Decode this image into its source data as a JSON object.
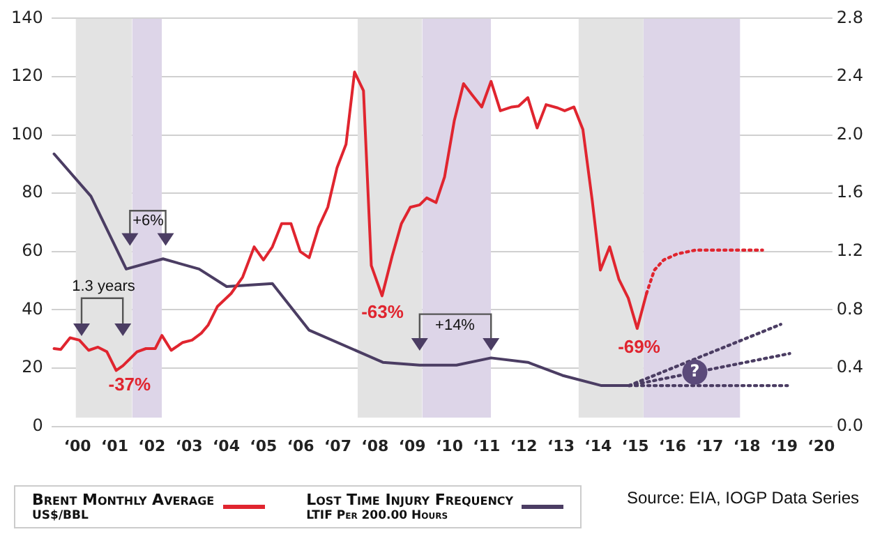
{
  "chart_data": {
    "type": "line",
    "xlim": [
      -0.7,
      20.3
    ],
    "xticks": [
      {
        "value": 0,
        "label": "‘00"
      },
      {
        "value": 1,
        "label": "‘01"
      },
      {
        "value": 2,
        "label": "‘02"
      },
      {
        "value": 3,
        "label": "‘03"
      },
      {
        "value": 4,
        "label": "‘04"
      },
      {
        "value": 5,
        "label": "‘05"
      },
      {
        "value": 6,
        "label": "‘06"
      },
      {
        "value": 7,
        "label": "‘07"
      },
      {
        "value": 8,
        "label": "‘08"
      },
      {
        "value": 9,
        "label": "‘09"
      },
      {
        "value": 10,
        "label": "‘10"
      },
      {
        "value": 11,
        "label": "‘11"
      },
      {
        "value": 12,
        "label": "‘12"
      },
      {
        "value": 13,
        "label": "‘13"
      },
      {
        "value": 14,
        "label": "‘14"
      },
      {
        "value": 15,
        "label": "‘15"
      },
      {
        "value": 16,
        "label": "‘16"
      },
      {
        "value": 17,
        "label": "‘17"
      },
      {
        "value": 18,
        "label": "‘18"
      },
      {
        "value": 19,
        "label": "‘19"
      },
      {
        "value": 20,
        "label": "‘20"
      }
    ],
    "ylim": [
      0,
      140
    ],
    "yticks": [
      0,
      20,
      40,
      60,
      80,
      100,
      120,
      140
    ],
    "y2lim": [
      0,
      2.8
    ],
    "y2ticks": [
      {
        "value": 0,
        "label": "0.0"
      },
      0.4,
      0.8,
      1.2,
      1.6,
      {
        "value": 2,
        "label": "2.0"
      },
      2.4,
      2.8
    ],
    "grid": "y",
    "legend": "bottom left",
    "marker": "none",
    "series": [
      {
        "name": "Brent Monthly Average",
        "color": "#e0252f",
        "line_style": "solid",
        "x": [
          -0.63,
          -0.45,
          -0.2,
          0.05,
          0.3,
          0.55,
          0.79,
          1.04,
          1.22,
          1.6,
          1.84,
          2.09,
          2.27,
          2.52,
          2.83,
          3.08,
          3.33,
          3.51,
          3.76,
          4.13,
          4.44,
          4.75,
          5.0,
          5.24,
          5.49,
          5.74,
          5.99,
          6.23,
          6.48,
          6.73,
          6.98,
          7.22,
          7.45,
          7.69,
          7.9,
          8.19,
          8.46,
          8.71,
          8.95,
          9.2,
          9.39,
          9.64,
          9.87,
          10.13,
          10.38,
          10.62,
          10.87,
          11.12,
          11.37,
          11.68,
          11.86,
          12.11,
          12.36,
          12.6,
          12.91,
          13.1,
          13.35,
          13.59,
          13.84,
          14.06,
          14.31,
          14.56,
          14.81,
          15.05,
          15.3
        ],
        "values": [
          26.7,
          26.4,
          30.4,
          29.6,
          26.1,
          27.2,
          25.6,
          19.2,
          20.8,
          25.6,
          26.7,
          26.7,
          31.2,
          26.1,
          28.8,
          29.6,
          32,
          34.7,
          41.1,
          45.6,
          51.2,
          61.6,
          57.1,
          61.6,
          69.6,
          69.6,
          60,
          57.9,
          68.3,
          75.2,
          88.8,
          96.8,
          121.6,
          115.2,
          55.2,
          44.8,
          58.4,
          69.6,
          75.2,
          76,
          78.4,
          76.8,
          85.6,
          104.8,
          117.6,
          113.6,
          109.6,
          118.4,
          108.3,
          109.6,
          109.9,
          112.8,
          102.4,
          110.4,
          109.3,
          108.3,
          109.6,
          101.9,
          77.6,
          53.6,
          61.6,
          50.4,
          44,
          33.6,
          45.6
        ]
      },
      {
        "name": "Lost Time Injury Frequency",
        "color": "#4b3d63",
        "line_style": "solid",
        "axis": "y2",
        "x": [
          -0.63,
          0.36,
          1.31,
          2.3,
          3.27,
          4.01,
          5.24,
          6.23,
          8.21,
          9.2,
          10.19,
          11.12,
          12.11,
          13.04,
          14.09,
          14.83
        ],
        "values": [
          1.87,
          1.58,
          1.08,
          1.15,
          1.08,
          0.96,
          0.98,
          0.66,
          0.44,
          0.42,
          0.42,
          0.47,
          0.44,
          0.35,
          0.28,
          0.28
        ]
      },
      {
        "color": "#e0252f",
        "line_style": "dotted",
        "x": [
          15.3,
          15.51,
          15.76,
          16.13,
          16.62,
          18.42
        ],
        "values": [
          45.6,
          53.6,
          57.1,
          59.2,
          60.5,
          60.5
        ]
      },
      {
        "color": "#4b3d63",
        "line_style": "dotted",
        "axis": "y2",
        "x": [
          14.83,
          18.91
        ],
        "values": [
          0.28,
          0.7
        ]
      },
      {
        "color": "#4b3d63",
        "line_style": "dotted",
        "axis": "y2",
        "x": [
          14.83,
          19.15
        ],
        "values": [
          0.28,
          0.5
        ]
      },
      {
        "color": "#4b3d63",
        "line_style": "dotted",
        "axis": "y2",
        "x": [
          14.83,
          19.09
        ],
        "values": [
          0.28,
          0.28
        ]
      }
    ],
    "bands": [
      {
        "axis": "x",
        "from": -0.05,
        "to": 1.47,
        "color": "#e3e3e3"
      },
      {
        "axis": "x",
        "from": 1.47,
        "to": 2.27,
        "color": "#ddd5e8"
      },
      {
        "axis": "x",
        "from": 7.53,
        "to": 9.27,
        "color": "#e3e3e3"
      },
      {
        "axis": "x",
        "from": 9.27,
        "to": 11.12,
        "color": "#ddd5e8"
      },
      {
        "axis": "x",
        "from": 13.47,
        "to": 15.22,
        "color": "#e3e3e3"
      },
      {
        "axis": "x",
        "from": 15.22,
        "to": 17.82,
        "color": "#ddd5e8"
      }
    ],
    "annotations": [
      "-37%",
      "-63%",
      "-69%",
      "1.3 years",
      "+6%",
      "+14%",
      "?",
      "Source: EIA, IOGP Data Series",
      "US$/BBL",
      "LTIF Per 200.00 Hours"
    ]
  }
}
